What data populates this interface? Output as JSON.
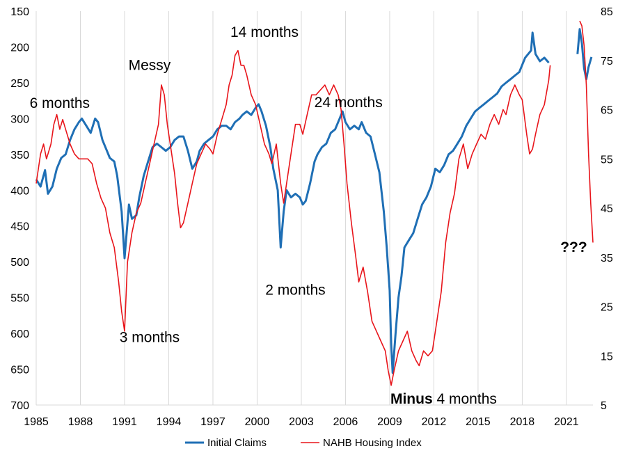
{
  "chart_data": {
    "type": "line",
    "title": "",
    "xlabel": "",
    "x_range": [
      1985,
      2022.8
    ],
    "x_ticks": [
      "1985",
      "1988",
      "1991",
      "1994",
      "1997",
      "2000",
      "2003",
      "2006",
      "2009",
      "2012",
      "2015",
      "2018",
      "2021"
    ],
    "left_axis": {
      "range": [
        700,
        150
      ],
      "inverted": true,
      "ticks": [
        "150",
        "200",
        "250",
        "300",
        "350",
        "400",
        "450",
        "500",
        "550",
        "600",
        "650",
        "700"
      ]
    },
    "right_axis": {
      "range": [
        5,
        85
      ],
      "ticks": [
        "85",
        "75",
        "65",
        "55",
        "45",
        "35",
        "25",
        "15",
        "5"
      ]
    },
    "grid": "vertical",
    "legend_position": "bottom",
    "series": [
      {
        "name": "Initial Claims",
        "axis": "left",
        "color": "#1f6fb5",
        "points": [
          [
            1985.0,
            385
          ],
          [
            1985.3,
            395
          ],
          [
            1985.6,
            372
          ],
          [
            1985.8,
            405
          ],
          [
            1986.1,
            395
          ],
          [
            1986.4,
            370
          ],
          [
            1986.7,
            355
          ],
          [
            1987.0,
            350
          ],
          [
            1987.3,
            330
          ],
          [
            1987.6,
            315
          ],
          [
            1987.9,
            305
          ],
          [
            1988.1,
            300
          ],
          [
            1988.4,
            310
          ],
          [
            1988.7,
            320
          ],
          [
            1989.0,
            300
          ],
          [
            1989.2,
            305
          ],
          [
            1989.5,
            330
          ],
          [
            1989.8,
            345
          ],
          [
            1990.0,
            355
          ],
          [
            1990.3,
            360
          ],
          [
            1990.5,
            380
          ],
          [
            1990.8,
            430
          ],
          [
            1991.0,
            495
          ],
          [
            1991.1,
            470
          ],
          [
            1991.3,
            420
          ],
          [
            1991.5,
            440
          ],
          [
            1991.8,
            435
          ],
          [
            1992.0,
            410
          ],
          [
            1992.3,
            380
          ],
          [
            1992.6,
            360
          ],
          [
            1992.9,
            340
          ],
          [
            1993.2,
            335
          ],
          [
            1993.5,
            340
          ],
          [
            1993.8,
            345
          ],
          [
            1994.1,
            340
          ],
          [
            1994.4,
            330
          ],
          [
            1994.7,
            325
          ],
          [
            1995.0,
            325
          ],
          [
            1995.3,
            345
          ],
          [
            1995.6,
            370
          ],
          [
            1995.9,
            360
          ],
          [
            1996.1,
            345
          ],
          [
            1996.4,
            335
          ],
          [
            1996.7,
            330
          ],
          [
            1997.0,
            325
          ],
          [
            1997.3,
            315
          ],
          [
            1997.6,
            310
          ],
          [
            1997.9,
            310
          ],
          [
            1998.2,
            315
          ],
          [
            1998.5,
            305
          ],
          [
            1998.8,
            300
          ],
          [
            1999.0,
            295
          ],
          [
            1999.3,
            290
          ],
          [
            1999.6,
            295
          ],
          [
            1999.9,
            285
          ],
          [
            2000.1,
            280
          ],
          [
            2000.3,
            290
          ],
          [
            2000.6,
            310
          ],
          [
            2000.9,
            340
          ],
          [
            2001.1,
            370
          ],
          [
            2001.4,
            400
          ],
          [
            2001.6,
            480
          ],
          [
            2001.8,
            430
          ],
          [
            2002.0,
            400
          ],
          [
            2002.3,
            410
          ],
          [
            2002.6,
            405
          ],
          [
            2002.9,
            410
          ],
          [
            2003.1,
            420
          ],
          [
            2003.3,
            415
          ],
          [
            2003.6,
            390
          ],
          [
            2003.9,
            360
          ],
          [
            2004.1,
            350
          ],
          [
            2004.4,
            340
          ],
          [
            2004.7,
            335
          ],
          [
            2005.0,
            320
          ],
          [
            2005.3,
            315
          ],
          [
            2005.6,
            300
          ],
          [
            2005.8,
            290
          ],
          [
            2006.0,
            305
          ],
          [
            2006.3,
            315
          ],
          [
            2006.6,
            310
          ],
          [
            2006.9,
            315
          ],
          [
            2007.1,
            305
          ],
          [
            2007.4,
            320
          ],
          [
            2007.7,
            325
          ],
          [
            2008.0,
            350
          ],
          [
            2008.3,
            375
          ],
          [
            2008.6,
            430
          ],
          [
            2008.8,
            480
          ],
          [
            2009.0,
            540
          ],
          [
            2009.1,
            615
          ],
          [
            2009.2,
            655
          ],
          [
            2009.4,
            600
          ],
          [
            2009.6,
            550
          ],
          [
            2009.8,
            520
          ],
          [
            2010.0,
            480
          ],
          [
            2010.3,
            470
          ],
          [
            2010.6,
            460
          ],
          [
            2010.9,
            440
          ],
          [
            2011.2,
            420
          ],
          [
            2011.5,
            410
          ],
          [
            2011.8,
            395
          ],
          [
            2012.1,
            370
          ],
          [
            2012.4,
            375
          ],
          [
            2012.7,
            365
          ],
          [
            2013.0,
            350
          ],
          [
            2013.3,
            345
          ],
          [
            2013.6,
            335
          ],
          [
            2013.9,
            325
          ],
          [
            2014.2,
            310
          ],
          [
            2014.5,
            300
          ],
          [
            2014.8,
            290
          ],
          [
            2015.1,
            285
          ],
          [
            2015.4,
            280
          ],
          [
            2015.7,
            275
          ],
          [
            2016.0,
            270
          ],
          [
            2016.3,
            265
          ],
          [
            2016.6,
            255
          ],
          [
            2016.9,
            250
          ],
          [
            2017.2,
            245
          ],
          [
            2017.5,
            240
          ],
          [
            2017.8,
            235
          ],
          [
            2018.0,
            225
          ],
          [
            2018.2,
            215
          ],
          [
            2018.4,
            210
          ],
          [
            2018.6,
            205
          ],
          [
            2018.7,
            180
          ],
          [
            2018.9,
            210
          ],
          [
            2019.2,
            220
          ],
          [
            2019.5,
            215
          ],
          [
            2019.8,
            222
          ],
          [
            2021.75,
            210
          ],
          [
            2021.9,
            175
          ],
          [
            2022.05,
            195
          ],
          [
            2022.2,
            230
          ],
          [
            2022.35,
            245
          ],
          [
            2022.5,
            228
          ],
          [
            2022.7,
            214
          ]
        ]
      },
      {
        "name": "NAHB Housing Index",
        "axis": "right",
        "color": "#e8151b",
        "points": [
          [
            1985.0,
            50
          ],
          [
            1985.3,
            56
          ],
          [
            1985.5,
            58
          ],
          [
            1985.7,
            55
          ],
          [
            1986.0,
            58
          ],
          [
            1986.2,
            62
          ],
          [
            1986.4,
            64
          ],
          [
            1986.6,
            61
          ],
          [
            1986.8,
            63
          ],
          [
            1987.0,
            61
          ],
          [
            1987.3,
            58
          ],
          [
            1987.6,
            56
          ],
          [
            1987.9,
            55
          ],
          [
            1988.2,
            55
          ],
          [
            1988.5,
            55
          ],
          [
            1988.8,
            54
          ],
          [
            1989.1,
            50
          ],
          [
            1989.4,
            47
          ],
          [
            1989.7,
            45
          ],
          [
            1990.0,
            40
          ],
          [
            1990.3,
            37
          ],
          [
            1990.6,
            30
          ],
          [
            1990.8,
            24
          ],
          [
            1991.0,
            20
          ],
          [
            1991.2,
            34
          ],
          [
            1991.5,
            40
          ],
          [
            1991.8,
            44
          ],
          [
            1992.1,
            46
          ],
          [
            1992.4,
            50
          ],
          [
            1992.7,
            54
          ],
          [
            1993.0,
            58
          ],
          [
            1993.3,
            62
          ],
          [
            1993.5,
            70
          ],
          [
            1993.7,
            68
          ],
          [
            1993.9,
            62
          ],
          [
            1994.1,
            58
          ],
          [
            1994.4,
            52
          ],
          [
            1994.6,
            46
          ],
          [
            1994.8,
            41
          ],
          [
            1995.0,
            42
          ],
          [
            1995.3,
            46
          ],
          [
            1995.6,
            50
          ],
          [
            1995.9,
            54
          ],
          [
            1996.2,
            56
          ],
          [
            1996.5,
            58
          ],
          [
            1996.8,
            57
          ],
          [
            1997.0,
            56
          ],
          [
            1997.3,
            60
          ],
          [
            1997.6,
            63
          ],
          [
            1997.9,
            66
          ],
          [
            1998.1,
            70
          ],
          [
            1998.3,
            72
          ],
          [
            1998.5,
            76
          ],
          [
            1998.7,
            77
          ],
          [
            1998.9,
            74
          ],
          [
            1999.1,
            74
          ],
          [
            1999.3,
            72
          ],
          [
            1999.6,
            68
          ],
          [
            1999.9,
            66
          ],
          [
            2000.2,
            62
          ],
          [
            2000.5,
            58
          ],
          [
            2000.8,
            56
          ],
          [
            2001.0,
            54
          ],
          [
            2001.3,
            58
          ],
          [
            2001.6,
            50
          ],
          [
            2001.8,
            46
          ],
          [
            2002.0,
            50
          ],
          [
            2002.3,
            56
          ],
          [
            2002.6,
            62
          ],
          [
            2002.9,
            62
          ],
          [
            2003.1,
            60
          ],
          [
            2003.4,
            64
          ],
          [
            2003.7,
            68
          ],
          [
            2004.0,
            68
          ],
          [
            2004.3,
            69
          ],
          [
            2004.6,
            70
          ],
          [
            2004.9,
            68
          ],
          [
            2005.2,
            70
          ],
          [
            2005.5,
            68
          ],
          [
            2005.7,
            65
          ],
          [
            2005.9,
            58
          ],
          [
            2006.1,
            50
          ],
          [
            2006.4,
            42
          ],
          [
            2006.7,
            35
          ],
          [
            2006.9,
            30
          ],
          [
            2007.2,
            33
          ],
          [
            2007.5,
            28
          ],
          [
            2007.8,
            22
          ],
          [
            2008.1,
            20
          ],
          [
            2008.4,
            18
          ],
          [
            2008.7,
            16
          ],
          [
            2008.9,
            12
          ],
          [
            2009.1,
            9
          ],
          [
            2009.3,
            12
          ],
          [
            2009.6,
            16
          ],
          [
            2009.9,
            18
          ],
          [
            2010.2,
            20
          ],
          [
            2010.5,
            16
          ],
          [
            2010.8,
            14
          ],
          [
            2011.0,
            13
          ],
          [
            2011.3,
            16
          ],
          [
            2011.6,
            15
          ],
          [
            2011.9,
            16
          ],
          [
            2012.2,
            22
          ],
          [
            2012.5,
            28
          ],
          [
            2012.8,
            38
          ],
          [
            2013.1,
            44
          ],
          [
            2013.4,
            48
          ],
          [
            2013.7,
            55
          ],
          [
            2014.0,
            58
          ],
          [
            2014.3,
            53
          ],
          [
            2014.6,
            56
          ],
          [
            2014.9,
            58
          ],
          [
            2015.2,
            60
          ],
          [
            2015.5,
            59
          ],
          [
            2015.8,
            62
          ],
          [
            2016.1,
            64
          ],
          [
            2016.4,
            62
          ],
          [
            2016.7,
            65
          ],
          [
            2016.9,
            64
          ],
          [
            2017.2,
            68
          ],
          [
            2017.5,
            70
          ],
          [
            2017.8,
            68
          ],
          [
            2018.0,
            67
          ],
          [
            2018.3,
            60
          ],
          [
            2018.5,
            56
          ],
          [
            2018.7,
            57
          ],
          [
            2018.9,
            60
          ],
          [
            2019.2,
            64
          ],
          [
            2019.5,
            66
          ],
          [
            2019.8,
            71
          ],
          [
            2019.9,
            74
          ],
          [
            2021.9,
            83
          ],
          [
            2022.05,
            82
          ],
          [
            2022.2,
            78
          ],
          [
            2022.35,
            70
          ],
          [
            2022.5,
            56
          ],
          [
            2022.65,
            46
          ],
          [
            2022.8,
            38
          ]
        ]
      }
    ],
    "annotations": [
      {
        "text": "6 months",
        "x": 1986.6,
        "y": 285,
        "axis": "left",
        "anchor": "middle"
      },
      {
        "text": "Messy",
        "x": 1992.7,
        "y": 232,
        "axis": "left",
        "anchor": "middle"
      },
      {
        "text": "14 months",
        "x": 2000.5,
        "y": 186,
        "axis": "left",
        "anchor": "middle"
      },
      {
        "text": "24 months",
        "x": 2006.2,
        "y": 284,
        "axis": "left",
        "anchor": "middle"
      },
      {
        "text": "2 months",
        "x": 2002.6,
        "y": 546,
        "axis": "left",
        "anchor": "middle"
      },
      {
        "text": "3 months",
        "x": 1992.7,
        "y": 612,
        "axis": "left",
        "anchor": "middle"
      },
      {
        "text": "???",
        "x": 2021.5,
        "y": 486,
        "axis": "left",
        "anchor": "middle",
        "bold": true
      }
    ],
    "annotation_minus": {
      "bold_text": "Minus",
      "text": " 4 months",
      "x": 2009.05,
      "y": 698,
      "axis": "left"
    }
  }
}
